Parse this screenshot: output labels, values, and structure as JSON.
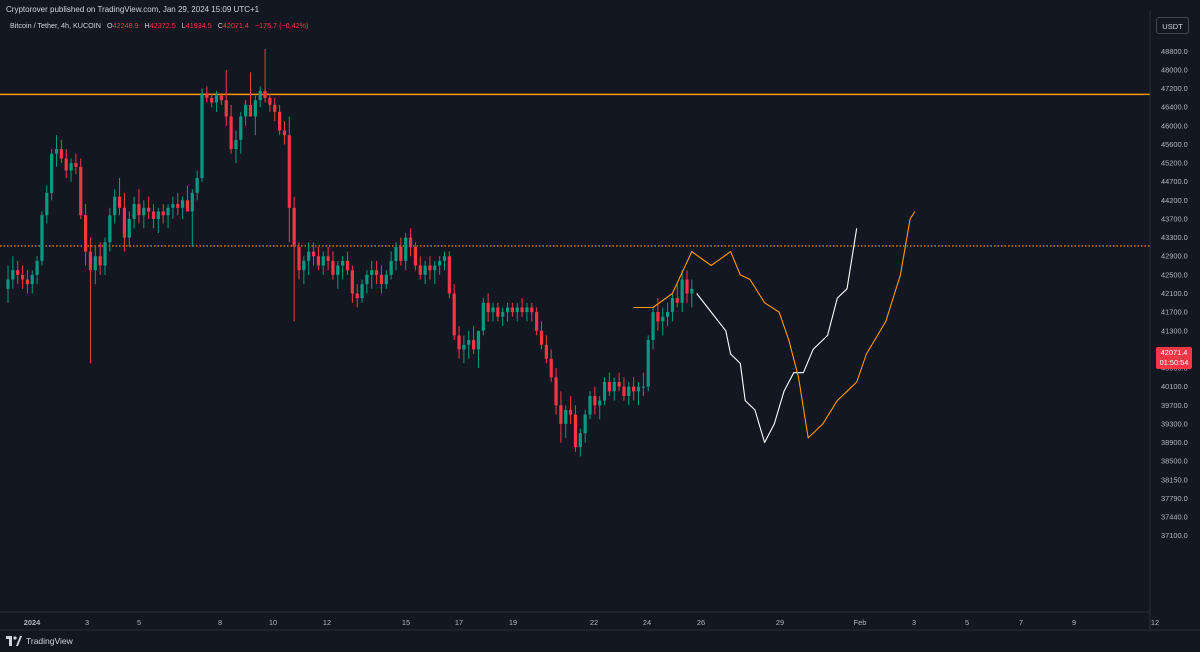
{
  "header": {
    "published_by": "Cryptorover published on TradingView.com, Jan 29, 2024 15:09 UTC+1"
  },
  "legend": {
    "symbol": "Bitcoin / Tether, 4h, KUCOIN",
    "o_label": "O",
    "o": "42248.9",
    "h_label": "H",
    "h": "42372.5",
    "l_label": "L",
    "l": "41934.5",
    "c_label": "C",
    "c": "42071.4",
    "change": "−175.7 (−0.42%)"
  },
  "price_axis": {
    "currency": "USDT",
    "current_price": "42071.4",
    "countdown": "01:50:54",
    "ticks": [
      "48800.0",
      "48000.0",
      "47200.0",
      "46400.0",
      "46000.0",
      "45600.0",
      "45200.0",
      "44700.0",
      "44200.0",
      "43700.0",
      "43300.0",
      "42900.0",
      "42500.0",
      "42100.0",
      "41700.0",
      "41300.0",
      "40900.0",
      "40500.0",
      "40100.0",
      "39700.0",
      "39300.0",
      "38900.0",
      "38500.0",
      "38150.0",
      "37790.0",
      "37440.0",
      "37100.0"
    ]
  },
  "footer": {
    "brand": "TradingView"
  },
  "colors": {
    "background": "#131722",
    "up": "#089981",
    "down": "#f23645",
    "resistance": "#ff9800",
    "projection_white": "#ffffff",
    "projection_orange": "#ff9800"
  },
  "chart_data": {
    "type": "candlestick",
    "interval": "4h",
    "x_tick_labels": [
      "2024",
      "3",
      "5",
      "8",
      "10",
      "12",
      "15",
      "17",
      "19",
      "22",
      "24",
      "26",
      "29",
      "Feb",
      "3",
      "5",
      "7",
      "9",
      "12"
    ],
    "levels": [
      {
        "price": 46950,
        "style": "solid",
        "color": "#ff9800"
      },
      {
        "price": 43120,
        "style": "dotted",
        "color": "#ff9800"
      }
    ],
    "candles": [
      [
        42200,
        42700,
        41900,
        42400
      ],
      [
        42400,
        42900,
        42200,
        42600
      ],
      [
        42600,
        42800,
        42300,
        42500
      ],
      [
        42500,
        42700,
        42200,
        42400
      ],
      [
        42400,
        42600,
        42100,
        42300
      ],
      [
        42300,
        42600,
        42100,
        42500
      ],
      [
        42500,
        42900,
        42300,
        42800
      ],
      [
        42800,
        43900,
        42700,
        43800
      ],
      [
        43800,
        44600,
        43600,
        44400
      ],
      [
        44400,
        45500,
        44200,
        45400
      ],
      [
        45400,
        45800,
        45100,
        45500
      ],
      [
        45500,
        45700,
        45200,
        45300
      ],
      [
        45300,
        45500,
        44800,
        45000
      ],
      [
        45000,
        45300,
        44700,
        45200
      ],
      [
        45200,
        45400,
        44900,
        45100
      ],
      [
        45100,
        45300,
        43700,
        43800
      ],
      [
        43800,
        44100,
        42700,
        43000
      ],
      [
        43000,
        43300,
        40600,
        42600
      ],
      [
        42600,
        43100,
        42300,
        42900
      ],
      [
        42900,
        43200,
        42500,
        42700
      ],
      [
        42700,
        43300,
        42500,
        43200
      ],
      [
        43200,
        44000,
        43000,
        43800
      ],
      [
        43800,
        44500,
        43600,
        44300
      ],
      [
        44300,
        44800,
        43800,
        44000
      ],
      [
        44000,
        44400,
        43000,
        43300
      ],
      [
        43300,
        43900,
        43100,
        43700
      ],
      [
        43700,
        44300,
        43500,
        44100
      ],
      [
        44100,
        44500,
        43600,
        43800
      ],
      [
        43800,
        44200,
        43500,
        44000
      ],
      [
        44000,
        44300,
        43700,
        43900
      ],
      [
        43900,
        44100,
        43500,
        43700
      ],
      [
        43700,
        44000,
        43400,
        43900
      ],
      [
        43900,
        44100,
        43600,
        43800
      ],
      [
        43800,
        44100,
        43500,
        44000
      ],
      [
        44000,
        44300,
        43700,
        44100
      ],
      [
        44100,
        44400,
        43800,
        44000
      ],
      [
        44000,
        44300,
        43700,
        44200
      ],
      [
        44200,
        44600,
        43900,
        43900
      ],
      [
        43900,
        44500,
        43100,
        44400
      ],
      [
        44400,
        45000,
        44200,
        44800
      ],
      [
        44800,
        47200,
        44700,
        47000
      ],
      [
        47000,
        47300,
        46600,
        46800
      ],
      [
        46800,
        47000,
        46400,
        46600
      ],
      [
        46600,
        47100,
        46300,
        46900
      ],
      [
        46900,
        47000,
        46500,
        46700
      ],
      [
        46700,
        48000,
        46000,
        46200
      ],
      [
        46200,
        46500,
        45400,
        45500
      ],
      [
        45500,
        45900,
        45200,
        45700
      ],
      [
        45700,
        46300,
        45400,
        46200
      ],
      [
        46200,
        46700,
        46000,
        46500
      ],
      [
        46500,
        47900,
        46300,
        46200
      ],
      [
        46200,
        46900,
        45800,
        46700
      ],
      [
        46700,
        47300,
        46400,
        47100
      ],
      [
        47100,
        48900,
        46600,
        46800
      ],
      [
        46800,
        47000,
        46300,
        46500
      ],
      [
        46500,
        46800,
        46100,
        46300
      ],
      [
        46300,
        46500,
        45800,
        45900
      ],
      [
        45900,
        46100,
        45600,
        45800
      ],
      [
        45800,
        46200,
        43200,
        44000
      ],
      [
        44000,
        44300,
        41500,
        43100
      ],
      [
        43100,
        43200,
        42400,
        42600
      ],
      [
        42600,
        42900,
        42300,
        42800
      ],
      [
        42800,
        43200,
        42500,
        43000
      ],
      [
        43000,
        43200,
        42700,
        42900
      ],
      [
        42900,
        43100,
        42600,
        42700
      ],
      [
        42700,
        43000,
        42500,
        42900
      ],
      [
        42900,
        43100,
        42600,
        42800
      ],
      [
        42800,
        43000,
        42400,
        42500
      ],
      [
        42500,
        42800,
        42200,
        42700
      ],
      [
        42700,
        42900,
        42400,
        42800
      ],
      [
        42800,
        43000,
        42500,
        42600
      ],
      [
        42600,
        42700,
        41900,
        42100
      ],
      [
        42100,
        42300,
        41800,
        42000
      ],
      [
        42000,
        42400,
        41900,
        42300
      ],
      [
        42300,
        42600,
        42100,
        42500
      ],
      [
        42500,
        42800,
        42200,
        42600
      ],
      [
        42600,
        42800,
        42300,
        42500
      ],
      [
        42500,
        42700,
        42100,
        42300
      ],
      [
        42300,
        42600,
        42200,
        42500
      ],
      [
        42500,
        43000,
        42400,
        42800
      ],
      [
        42800,
        43200,
        42600,
        43100
      ],
      [
        43100,
        43300,
        42700,
        42800
      ],
      [
        42800,
        43400,
        42600,
        43300
      ],
      [
        43300,
        43500,
        42900,
        43100
      ],
      [
        43100,
        43200,
        42600,
        42700
      ],
      [
        42700,
        42900,
        42400,
        42500
      ],
      [
        42500,
        42800,
        42300,
        42700
      ],
      [
        42700,
        42900,
        42400,
        42600
      ],
      [
        42600,
        42800,
        42300,
        42700
      ],
      [
        42700,
        42900,
        42500,
        42800
      ],
      [
        42800,
        43000,
        42600,
        42900
      ],
      [
        42900,
        43000,
        42000,
        42100
      ],
      [
        42100,
        42300,
        41100,
        41200
      ],
      [
        41200,
        41400,
        40700,
        40900
      ],
      [
        40900,
        41200,
        40600,
        41000
      ],
      [
        41000,
        41300,
        40700,
        41100
      ],
      [
        41100,
        41400,
        40800,
        40900
      ],
      [
        40900,
        41200,
        40500,
        41300
      ],
      [
        41300,
        42000,
        41200,
        41900
      ],
      [
        41900,
        42100,
        41500,
        41700
      ],
      [
        41700,
        41900,
        41500,
        41800
      ],
      [
        41800,
        41900,
        41500,
        41600
      ],
      [
        41600,
        41800,
        41400,
        41700
      ],
      [
        41700,
        41900,
        41500,
        41800
      ],
      [
        41800,
        41900,
        41600,
        41700
      ],
      [
        41700,
        41900,
        41500,
        41800
      ],
      [
        41800,
        42000,
        41600,
        41700
      ],
      [
        41700,
        41900,
        41500,
        41800
      ],
      [
        41800,
        41900,
        41500,
        41700
      ],
      [
        41700,
        41800,
        41200,
        41300
      ],
      [
        41300,
        41500,
        40900,
        41000
      ],
      [
        41000,
        41200,
        40600,
        40700
      ],
      [
        40700,
        40900,
        40200,
        40300
      ],
      [
        40300,
        40500,
        39500,
        39700
      ],
      [
        39700,
        40000,
        38900,
        39300
      ],
      [
        39300,
        39700,
        39000,
        39600
      ],
      [
        39600,
        39900,
        39300,
        39500
      ],
      [
        39500,
        39700,
        38700,
        38800
      ],
      [
        38800,
        39200,
        38600,
        39100
      ],
      [
        39100,
        39600,
        38900,
        39500
      ],
      [
        39500,
        40000,
        39400,
        39900
      ],
      [
        39900,
        40100,
        39500,
        39700
      ],
      [
        39700,
        39900,
        39400,
        39800
      ],
      [
        39800,
        40300,
        39700,
        40200
      ],
      [
        40200,
        40400,
        39900,
        40000
      ],
      [
        40000,
        40300,
        39800,
        40200
      ],
      [
        40200,
        40400,
        40000,
        40100
      ],
      [
        40100,
        40300,
        39800,
        39900
      ],
      [
        39900,
        40200,
        39700,
        40100
      ],
      [
        40100,
        40300,
        39800,
        40000
      ],
      [
        40000,
        40200,
        39700,
        40100
      ],
      [
        40100,
        40400,
        39900,
        40100
      ],
      [
        40100,
        41200,
        40000,
        41100
      ],
      [
        41100,
        41800,
        40900,
        41700
      ],
      [
        41700,
        42000,
        41300,
        41500
      ],
      [
        41500,
        41800,
        41200,
        41600
      ],
      [
        41600,
        41900,
        41400,
        41700
      ],
      [
        41700,
        42100,
        41500,
        42000
      ],
      [
        42000,
        42300,
        41800,
        41900
      ],
      [
        41900,
        42600,
        41700,
        42400
      ],
      [
        42400,
        42600,
        41900,
        42100
      ],
      [
        42100,
        42400,
        41800,
        42200
      ]
    ],
    "projections": [
      {
        "color": "#ffffff",
        "points": [
          [
            1,
            42100
          ],
          [
            4,
            41700
          ],
          [
            7,
            41300
          ],
          [
            8,
            40800
          ],
          [
            10,
            40600
          ],
          [
            11,
            39800
          ],
          [
            13,
            39600
          ],
          [
            15,
            38900
          ],
          [
            17,
            39300
          ],
          [
            19,
            40000
          ],
          [
            21,
            40400
          ],
          [
            23,
            40400
          ],
          [
            25,
            40900
          ],
          [
            28,
            41200
          ],
          [
            30,
            42000
          ],
          [
            32,
            42200
          ],
          [
            34,
            43500
          ]
        ]
      },
      {
        "color": "#ff9800",
        "points": [
          [
            -12,
            41800
          ],
          [
            -8,
            41800
          ],
          [
            -4,
            42100
          ],
          [
            0,
            43000
          ],
          [
            4,
            42700
          ],
          [
            8,
            43000
          ],
          [
            10,
            42500
          ],
          [
            12,
            42400
          ],
          [
            15,
            41900
          ],
          [
            18,
            41700
          ],
          [
            20,
            41100
          ],
          [
            22,
            40300
          ],
          [
            24,
            39000
          ],
          [
            27,
            39300
          ],
          [
            30,
            39800
          ],
          [
            32,
            40000
          ],
          [
            34,
            40200
          ],
          [
            36,
            40800
          ],
          [
            40,
            41500
          ],
          [
            43,
            42500
          ],
          [
            45,
            43700
          ],
          [
            46,
            43900
          ]
        ]
      }
    ]
  }
}
